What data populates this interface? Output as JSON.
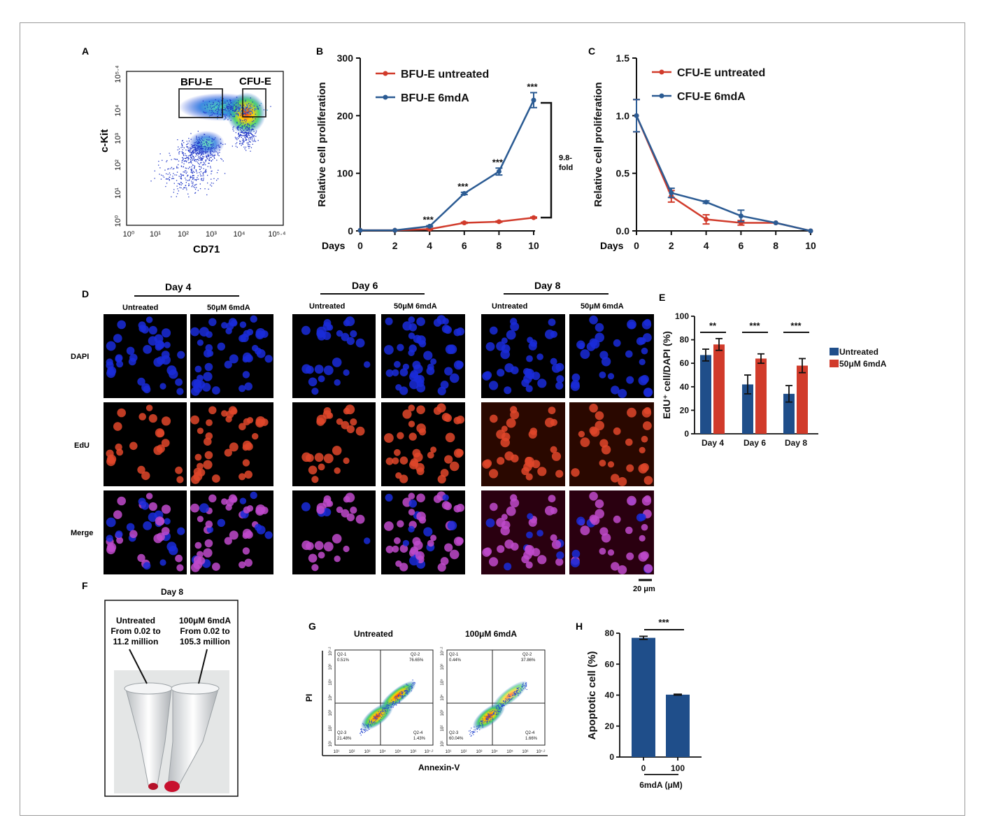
{
  "colors": {
    "red": "#d13b2b",
    "blue": "#2b5b93",
    "bar_blue": "#1f4e8a",
    "bar_red": "#d13b2b",
    "dapi": "#1a2bd9",
    "edu": "#e0462a",
    "merge": "#c04acb"
  },
  "panels": {
    "A": {
      "letter": "A",
      "xlabel": "CD71",
      "ylabel": "c-Kit",
      "gate1": "BFU-E",
      "gate2": "CFU-E",
      "xticks": [
        "10⁰",
        "10¹",
        "10²",
        "10³",
        "10⁴",
        "10⁵·⁴"
      ],
      "yticks": [
        "10⁰",
        "10¹",
        "10²",
        "10³",
        "10⁴",
        "10⁵·⁴"
      ]
    },
    "B": {
      "letter": "B",
      "fold_text_1": "9.8-",
      "fold_text_2": "fold",
      "days_label": "Days"
    },
    "C": {
      "letter": "C",
      "days_label": "Days"
    },
    "D": {
      "letter": "D",
      "groups": [
        {
          "title": "Day 4",
          "col1": "Untreated",
          "col2": "50μM 6mdA"
        },
        {
          "title": "Day 6",
          "col1": "Untreated",
          "col2": "50μM 6mdA"
        },
        {
          "title": "Day 8",
          "col1": "Untreated",
          "col2": "50μM 6mdA"
        }
      ],
      "rows": [
        "DAPI",
        "EdU",
        "Merge"
      ],
      "scalebar": "20 μm"
    },
    "E": {
      "letter": "E"
    },
    "F": {
      "letter": "F",
      "title": "Day 8",
      "tube1": [
        "Untreated",
        "From 0.02 to",
        "11.2 million"
      ],
      "tube2": [
        "100μM 6mdA",
        "From 0.02 to",
        "105.3 million"
      ]
    },
    "G": {
      "letter": "G",
      "plot1_title": "Untreated",
      "plot2_title": "100μM 6mdA",
      "xlabel": "Annexin-V",
      "ylabel": "PI",
      "plot1_quadrants": [
        "Q2-1",
        "0.51%",
        "Q2-2",
        "76.65%",
        "Q2-3",
        "21.48%",
        "Q2-4",
        "1.43%"
      ],
      "plot2_quadrants": [
        "Q2-1",
        "0.44%",
        "Q2-2",
        "37.86%",
        "Q2-3",
        "60.04%",
        "Q2-4",
        "1.66%"
      ]
    },
    "H": {
      "letter": "H",
      "xgroup_label": "6mdA (μM)",
      "sig": "***"
    }
  },
  "chart_data": [
    {
      "panel": "B",
      "type": "line",
      "x": [
        0,
        2,
        4,
        6,
        8,
        10
      ],
      "xlim": [
        0,
        10
      ],
      "ylim": [
        0,
        300
      ],
      "yticks": [
        0,
        100,
        200,
        300
      ],
      "ylabel": "Relative cell proliferation",
      "xlabel": "Days",
      "series": [
        {
          "name": "BFU-E untreated",
          "color": "#d13b2b",
          "values": [
            1,
            1,
            3,
            14,
            16,
            23
          ],
          "err": [
            0,
            0,
            1,
            1,
            1,
            1
          ]
        },
        {
          "name": "BFU-E 6mdA",
          "color": "#2b5b93",
          "values": [
            1,
            1,
            8,
            65,
            103,
            227
          ],
          "err": [
            0,
            0,
            1,
            2,
            6,
            13
          ]
        }
      ],
      "annotations": [
        {
          "x": 4,
          "text": "***"
        },
        {
          "x": 6,
          "text": "***"
        },
        {
          "x": 8,
          "text": "***"
        },
        {
          "x": 10,
          "text": "***"
        }
      ]
    },
    {
      "panel": "C",
      "type": "line",
      "x": [
        0,
        2,
        4,
        6,
        8,
        10
      ],
      "xlim": [
        0,
        10
      ],
      "ylim": [
        0,
        1.5
      ],
      "yticks": [
        0.0,
        0.5,
        1.0,
        1.5
      ],
      "ylabel": "Relative cell proliferation",
      "xlabel": "Days",
      "series": [
        {
          "name": "CFU-E untreated",
          "color": "#d13b2b",
          "values": [
            1.0,
            0.3,
            0.1,
            0.07,
            0.07,
            0.0
          ],
          "err": [
            0.14,
            0.05,
            0.04,
            0.02,
            0,
            0
          ]
        },
        {
          "name": "CFU-E 6mdA",
          "color": "#2b5b93",
          "values": [
            1.0,
            0.33,
            0.25,
            0.13,
            0.07,
            0.0
          ],
          "err": [
            0.14,
            0.04,
            0.01,
            0.05,
            0,
            0
          ]
        }
      ]
    },
    {
      "panel": "E",
      "type": "bar",
      "categories": [
        "Day 4",
        "Day 6",
        "Day 8"
      ],
      "ylim": [
        0,
        100
      ],
      "yticks": [
        0,
        20,
        40,
        60,
        80,
        100
      ],
      "ylabel": "EdU⁺ cell/DAPI (%)",
      "series": [
        {
          "name": "Untreated",
          "color": "#1f4e8a",
          "values": [
            67,
            42,
            34
          ],
          "err": [
            5,
            8,
            7
          ]
        },
        {
          "name": "50μM 6mdA",
          "color": "#d13b2b",
          "values": [
            76,
            64,
            58
          ],
          "err": [
            5,
            4,
            6
          ]
        }
      ],
      "significance": [
        "**",
        "***",
        "***"
      ],
      "legend": "right"
    },
    {
      "panel": "H",
      "type": "bar",
      "categories": [
        "0",
        "100"
      ],
      "ylim": [
        0,
        80
      ],
      "yticks": [
        0,
        20,
        40,
        60,
        80
      ],
      "ylabel": "Apoptotic cell (%)",
      "xlabel": "6mdA (μM)",
      "series": [
        {
          "color": "#1f4e8a",
          "values": [
            77,
            40.3
          ],
          "err": [
            1,
            0.3
          ]
        }
      ]
    }
  ]
}
